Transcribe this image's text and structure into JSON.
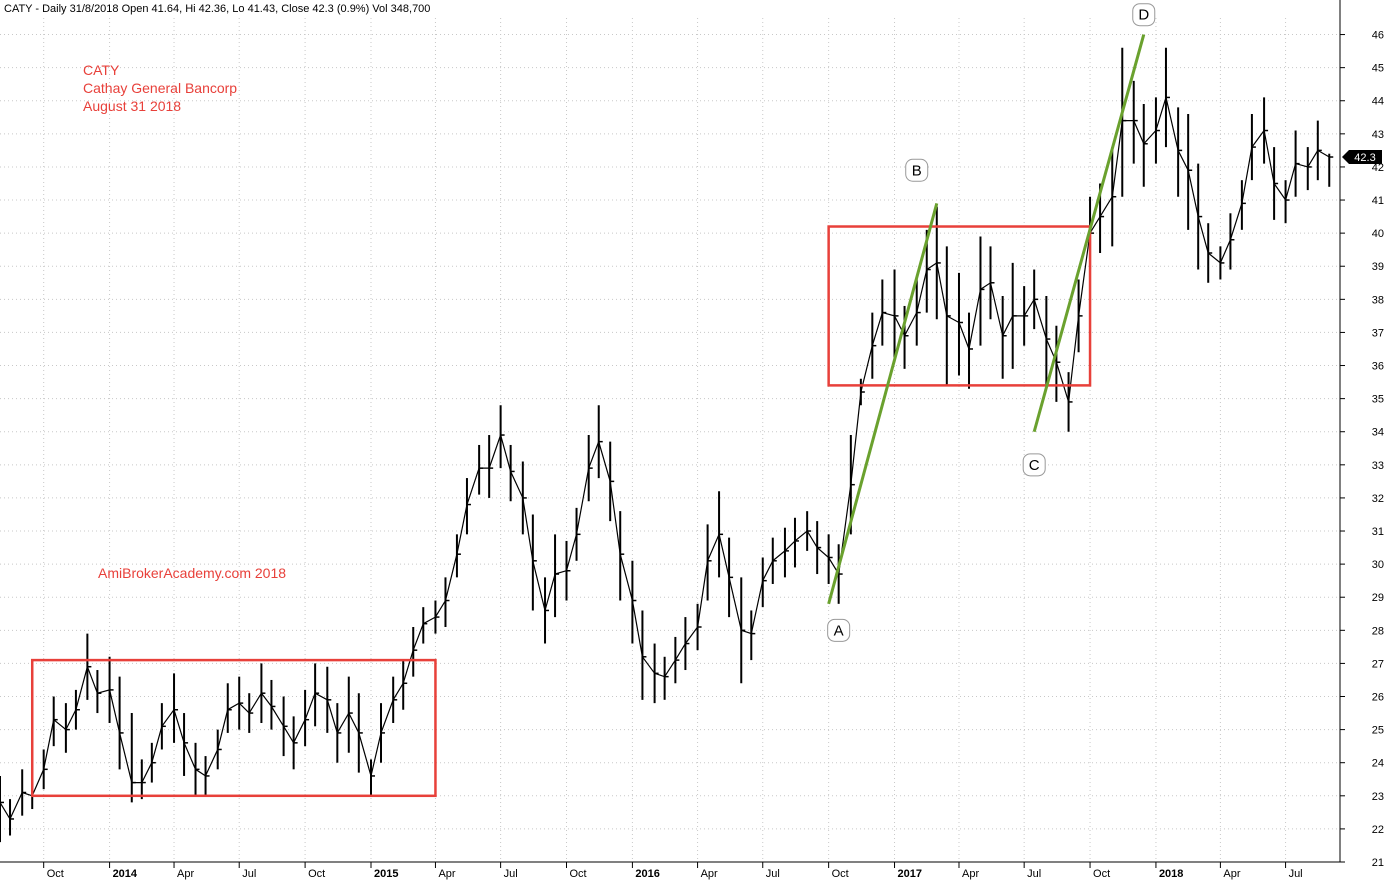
{
  "chart_data": {
    "type": "line",
    "chart_style": "ohlc bars",
    "symbol": "CATY",
    "header": "CATY - Daily 31/8/2018 Open 41.64, Hi 42.36, Lo 41.43, Close 42.3 (0.9%) Vol 348,700",
    "annotation_lines": [
      "CATY",
      "Cathay General Bancorp",
      "August 31 2018"
    ],
    "watermark": "AmiBrokerAcademy.com  2018",
    "last_price_label": "42.3",
    "ylim": [
      21,
      46.5
    ],
    "yticks": [
      21,
      22,
      23,
      24,
      25,
      26,
      27,
      28,
      29,
      30,
      31,
      32,
      33,
      34,
      35,
      36,
      37,
      38,
      39,
      40,
      41,
      42,
      43,
      44,
      45,
      46
    ],
    "xlim": [
      "2013-08-01",
      "2018-09-15"
    ],
    "xticks": [
      {
        "date": "2013-10-01",
        "label": "Oct",
        "bold": false
      },
      {
        "date": "2014-01-01",
        "label": "2014",
        "bold": true
      },
      {
        "date": "2014-04-01",
        "label": "Apr",
        "bold": false
      },
      {
        "date": "2014-07-01",
        "label": "Jul",
        "bold": false
      },
      {
        "date": "2014-10-01",
        "label": "Oct",
        "bold": false
      },
      {
        "date": "2015-01-01",
        "label": "2015",
        "bold": true
      },
      {
        "date": "2015-04-01",
        "label": "Apr",
        "bold": false
      },
      {
        "date": "2015-07-01",
        "label": "Jul",
        "bold": false
      },
      {
        "date": "2015-10-01",
        "label": "Oct",
        "bold": false
      },
      {
        "date": "2016-01-01",
        "label": "2016",
        "bold": true
      },
      {
        "date": "2016-04-01",
        "label": "Apr",
        "bold": false
      },
      {
        "date": "2016-07-01",
        "label": "Jul",
        "bold": false
      },
      {
        "date": "2016-10-01",
        "label": "Oct",
        "bold": false
      },
      {
        "date": "2017-01-01",
        "label": "2017",
        "bold": true
      },
      {
        "date": "2017-04-01",
        "label": "Apr",
        "bold": false
      },
      {
        "date": "2017-07-01",
        "label": "Jul",
        "bold": false
      },
      {
        "date": "2017-10-01",
        "label": "Oct",
        "bold": false
      },
      {
        "date": "2018-01-01",
        "label": "2018",
        "bold": true
      },
      {
        "date": "2018-04-01",
        "label": "Apr",
        "bold": false
      },
      {
        "date": "2018-07-01",
        "label": "Jul",
        "bold": false
      }
    ],
    "grid": true,
    "x": [
      "2013-08-01",
      "2013-08-15",
      "2013-09-01",
      "2013-09-15",
      "2013-10-01",
      "2013-10-15",
      "2013-11-01",
      "2013-11-15",
      "2013-12-01",
      "2013-12-15",
      "2014-01-01",
      "2014-01-15",
      "2014-02-01",
      "2014-02-15",
      "2014-03-01",
      "2014-03-15",
      "2014-04-01",
      "2014-04-15",
      "2014-05-01",
      "2014-05-15",
      "2014-06-01",
      "2014-06-15",
      "2014-07-01",
      "2014-07-15",
      "2014-08-01",
      "2014-08-15",
      "2014-09-01",
      "2014-09-15",
      "2014-10-01",
      "2014-10-15",
      "2014-11-01",
      "2014-11-15",
      "2014-12-01",
      "2014-12-15",
      "2015-01-01",
      "2015-01-15",
      "2015-02-01",
      "2015-02-15",
      "2015-03-01",
      "2015-03-15",
      "2015-04-01",
      "2015-04-15",
      "2015-05-01",
      "2015-05-15",
      "2015-06-01",
      "2015-06-15",
      "2015-07-01",
      "2015-07-15",
      "2015-08-01",
      "2015-08-15",
      "2015-09-01",
      "2015-09-15",
      "2015-10-01",
      "2015-10-15",
      "2015-11-01",
      "2015-11-15",
      "2015-12-01",
      "2015-12-15",
      "2016-01-01",
      "2016-01-15",
      "2016-02-01",
      "2016-02-15",
      "2016-03-01",
      "2016-03-15",
      "2016-04-01",
      "2016-04-15",
      "2016-05-01",
      "2016-05-15",
      "2016-06-01",
      "2016-06-15",
      "2016-07-01",
      "2016-07-15",
      "2016-08-01",
      "2016-08-15",
      "2016-09-01",
      "2016-09-15",
      "2016-10-01",
      "2016-10-15",
      "2016-11-01",
      "2016-11-15",
      "2016-12-01",
      "2016-12-15",
      "2017-01-01",
      "2017-01-15",
      "2017-02-01",
      "2017-02-15",
      "2017-03-01",
      "2017-03-15",
      "2017-04-01",
      "2017-04-15",
      "2017-05-01",
      "2017-05-15",
      "2017-06-01",
      "2017-06-15",
      "2017-07-01",
      "2017-07-15",
      "2017-08-01",
      "2017-08-15",
      "2017-09-01",
      "2017-09-15",
      "2017-10-01",
      "2017-10-15",
      "2017-11-01",
      "2017-11-15",
      "2017-12-01",
      "2017-12-15",
      "2018-01-01",
      "2018-01-15",
      "2018-02-01",
      "2018-02-15",
      "2018-03-01",
      "2018-03-15",
      "2018-04-01",
      "2018-04-15",
      "2018-05-01",
      "2018-05-15",
      "2018-06-01",
      "2018-06-15",
      "2018-07-01",
      "2018-07-15",
      "2018-08-01",
      "2018-08-15",
      "2018-08-31"
    ],
    "series": [
      {
        "name": "High",
        "values": [
          23.6,
          22.9,
          23.8,
          23.4,
          24.4,
          26.0,
          25.8,
          26.2,
          27.9,
          26.8,
          27.2,
          26.6,
          25.5,
          24.1,
          24.6,
          25.8,
          26.7,
          25.5,
          24.6,
          24.2,
          25.0,
          26.4,
          26.6,
          26.1,
          27.0,
          26.5,
          26.0,
          25.4,
          26.2,
          27.0,
          26.9,
          25.8,
          26.6,
          26.1,
          24.1,
          25.8,
          26.6,
          27.1,
          28.1,
          28.7,
          28.9,
          29.6,
          30.9,
          32.6,
          33.6,
          33.9,
          34.8,
          33.6,
          33.1,
          31.5,
          29.6,
          30.9,
          30.7,
          31.7,
          33.9,
          34.8,
          33.7,
          31.6,
          30.1,
          28.6,
          27.6,
          27.2,
          27.8,
          28.4,
          28.8,
          31.2,
          32.2,
          30.8,
          29.6,
          28.6,
          30.2,
          30.8,
          31.1,
          31.4,
          31.6,
          31.3,
          30.9,
          30.6,
          33.9,
          35.6,
          37.6,
          38.6,
          38.9,
          37.8,
          38.6,
          40.1,
          40.8,
          39.6,
          38.8,
          37.6,
          39.9,
          39.6,
          38.1,
          39.1,
          38.4,
          38.9,
          38.1,
          37.2,
          35.8,
          38.6,
          41.1,
          41.5,
          42.6,
          45.6,
          44.6,
          43.9,
          44.1,
          45.6,
          43.8,
          43.6,
          42.1,
          40.3,
          39.6,
          40.6,
          41.6,
          43.6,
          44.1,
          42.6,
          41.6,
          43.1,
          42.6,
          43.4,
          42.4
        ]
      },
      {
        "name": "Low",
        "values": [
          21.6,
          21.8,
          22.4,
          22.6,
          23.2,
          24.5,
          24.3,
          25.0,
          25.9,
          25.5,
          25.2,
          23.8,
          22.8,
          22.9,
          23.4,
          24.4,
          24.6,
          23.6,
          23.0,
          23.0,
          23.8,
          24.9,
          25.0,
          24.9,
          25.2,
          25.0,
          24.2,
          23.8,
          24.5,
          25.1,
          24.9,
          24.0,
          24.3,
          23.7,
          23.0,
          24.0,
          25.2,
          25.6,
          26.6,
          27.6,
          27.9,
          28.1,
          29.6,
          30.9,
          32.1,
          32.0,
          32.9,
          31.9,
          30.9,
          28.6,
          27.6,
          28.4,
          28.9,
          30.1,
          31.9,
          32.6,
          31.3,
          28.9,
          27.6,
          25.9,
          25.8,
          25.9,
          26.4,
          26.8,
          27.4,
          28.9,
          29.6,
          28.4,
          26.4,
          27.1,
          28.7,
          29.4,
          29.6,
          29.9,
          30.4,
          29.7,
          29.4,
          28.8,
          30.9,
          34.8,
          35.6,
          36.6,
          36.1,
          35.9,
          36.6,
          37.6,
          37.4,
          35.4,
          35.7,
          35.3,
          36.6,
          37.4,
          35.6,
          35.9,
          36.6,
          37.1,
          35.4,
          34.9,
          34.0,
          36.4,
          38.9,
          39.4,
          39.6,
          41.1,
          42.1,
          41.4,
          42.1,
          42.6,
          41.1,
          40.1,
          38.9,
          38.5,
          38.6,
          38.9,
          40.1,
          41.6,
          42.1,
          40.4,
          40.3,
          41.1,
          41.3,
          41.6,
          41.4
        ]
      },
      {
        "name": "Close",
        "values": [
          22.8,
          22.3,
          23.1,
          23.0,
          23.8,
          25.3,
          25.0,
          25.6,
          26.9,
          26.1,
          26.2,
          24.9,
          23.4,
          23.4,
          24.0,
          25.1,
          25.6,
          24.6,
          23.8,
          23.6,
          24.4,
          25.6,
          25.8,
          25.5,
          26.1,
          25.7,
          25.1,
          24.6,
          25.3,
          26.1,
          25.9,
          24.9,
          25.5,
          24.9,
          23.6,
          24.9,
          25.9,
          26.4,
          27.4,
          28.2,
          28.4,
          28.9,
          30.3,
          31.8,
          32.9,
          32.9,
          33.9,
          32.8,
          32.0,
          30.1,
          28.6,
          29.7,
          29.8,
          30.9,
          32.9,
          33.7,
          32.5,
          30.3,
          28.9,
          27.2,
          26.7,
          26.6,
          27.1,
          27.6,
          28.1,
          30.1,
          30.9,
          29.6,
          28.0,
          27.9,
          29.5,
          30.1,
          30.4,
          30.7,
          31.0,
          30.5,
          30.2,
          29.7,
          32.4,
          35.2,
          36.6,
          37.6,
          37.5,
          36.9,
          37.6,
          38.9,
          39.1,
          37.5,
          37.3,
          36.5,
          38.3,
          38.5,
          36.9,
          37.5,
          37.5,
          38.0,
          36.8,
          36.1,
          34.9,
          37.5,
          40.0,
          40.5,
          41.1,
          43.4,
          43.4,
          42.7,
          43.1,
          44.1,
          42.5,
          41.9,
          40.5,
          39.4,
          39.1,
          39.8,
          40.9,
          42.6,
          43.1,
          41.5,
          41.0,
          42.1,
          42.0,
          42.5,
          42.3
        ]
      }
    ],
    "overlays": {
      "rectangles": [
        {
          "x0": "2013-09-15",
          "x1": "2015-04-01",
          "y0": 23.0,
          "y1": 27.1
        },
        {
          "x0": "2016-10-01",
          "x1": "2017-10-01",
          "y0": 35.4,
          "y1": 40.2
        }
      ],
      "trendlines": [
        {
          "x0": "2016-10-01",
          "y0": 28.8,
          "x1": "2017-03-01",
          "y1": 40.9
        },
        {
          "x0": "2017-07-15",
          "y0": 34.0,
          "x1": "2017-12-15",
          "y1": 46.0
        }
      ],
      "point_labels": [
        {
          "label": "A",
          "date": "2016-10-15",
          "value": 28.0
        },
        {
          "label": "B",
          "date": "2017-02-01",
          "value": 41.9
        },
        {
          "label": "C",
          "date": "2017-07-15",
          "value": 33.0
        },
        {
          "label": "D",
          "date": "2017-12-15",
          "value": 46.6
        }
      ]
    },
    "colors": {
      "bars": "#000000",
      "box": "#e8403a",
      "trend": "#6aa12e",
      "annotation": "#e8403a",
      "grid": "#c8c8c8"
    }
  }
}
